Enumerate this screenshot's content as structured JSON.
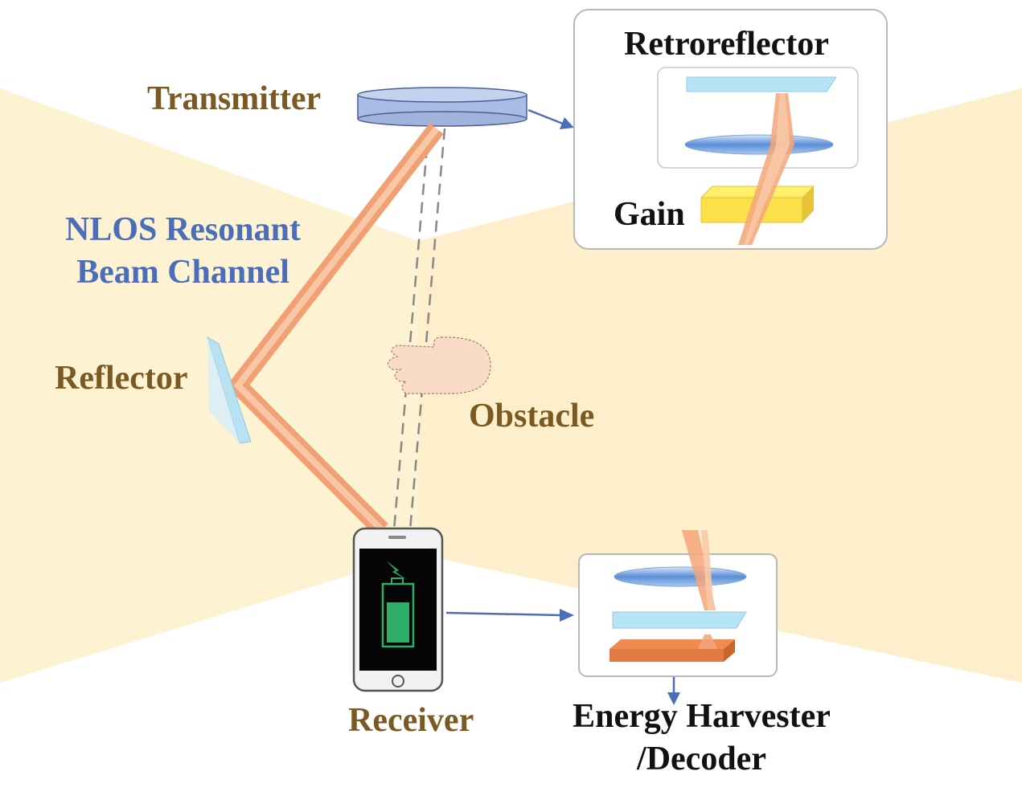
{
  "labels": {
    "transmitter": "Transmitter",
    "nlos_line1": "NLOS Resonant",
    "nlos_line2": "Beam Channel",
    "reflector": "Reflector",
    "obstacle": "Obstacle",
    "receiver": "Receiver",
    "retroreflector": "Retroreflector",
    "gain": "Gain",
    "harvester_line1": "Energy Harvester",
    "harvester_line2": "/Decoder"
  },
  "colors": {
    "label_brown": "#7a5a22",
    "label_blue": "#4a6fb8",
    "label_black": "#111111",
    "beam": "#f4a77a",
    "background_light": "#fdf2d2",
    "arrow": "#4a6fb8",
    "battery": "#2fae6a"
  }
}
